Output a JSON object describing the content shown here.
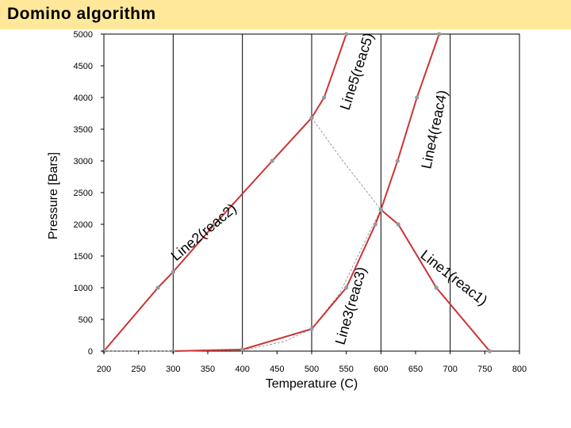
{
  "slide": {
    "title": "Domino algorithm"
  },
  "colors": {
    "title_bg": "#ffe89a",
    "curve": "#cc3333",
    "dashed": "#888888",
    "point": "#999999",
    "grid": "#000000"
  },
  "chart_data": {
    "type": "line",
    "title": "",
    "xlabel": "Temperature (C)",
    "ylabel": "Pressure [Bars]",
    "xlim": [
      200,
      800
    ],
    "ylim": [
      0,
      5000
    ],
    "xticks": [
      "200",
      "250",
      "300",
      "350",
      "400",
      "450",
      "500",
      "550",
      "600",
      "650",
      "700",
      "750",
      "800"
    ],
    "yticks": [
      "0",
      "500",
      "1000",
      "1500",
      "2000",
      "2500",
      "3000",
      "3500",
      "4000",
      "4500",
      "5000"
    ],
    "vertical_gridlines_x": [
      300,
      400,
      500,
      600,
      700
    ],
    "series": [
      {
        "name": "Line1(reac1)",
        "x": [
          600,
          625,
          680,
          757
        ],
        "y": [
          2230,
          2000,
          1000,
          0
        ]
      },
      {
        "name": "Line2(reac2)",
        "x": [
          200,
          278,
          300,
          360,
          443,
          500
        ],
        "y": [
          0,
          1000,
          1250,
          2000,
          3000,
          3680
        ]
      },
      {
        "name": "Line3(reac3)",
        "x": [
          300,
          400,
          500,
          550,
          592,
          600
        ],
        "y": [
          0,
          25,
          350,
          1000,
          2000,
          2230
        ]
      },
      {
        "name": "Line4(reac4)",
        "x": [
          600,
          624,
          652,
          684
        ],
        "y": [
          2230,
          3000,
          4000,
          5000
        ]
      },
      {
        "name": "Line5(reac5)",
        "x": [
          500,
          518,
          550
        ],
        "y": [
          3680,
          4000,
          5000
        ]
      }
    ],
    "dashed_curves": [
      {
        "x": [
          200,
          300,
          400,
          460,
          500,
          540,
          580,
          600
        ],
        "y": [
          0,
          0,
          10,
          150,
          350,
          900,
          1800,
          2230
        ]
      },
      {
        "x": [
          500,
          545,
          600
        ],
        "y": [
          3680,
          3000,
          2230
        ]
      }
    ],
    "grid": "vertical only",
    "legend": "inline labels"
  }
}
